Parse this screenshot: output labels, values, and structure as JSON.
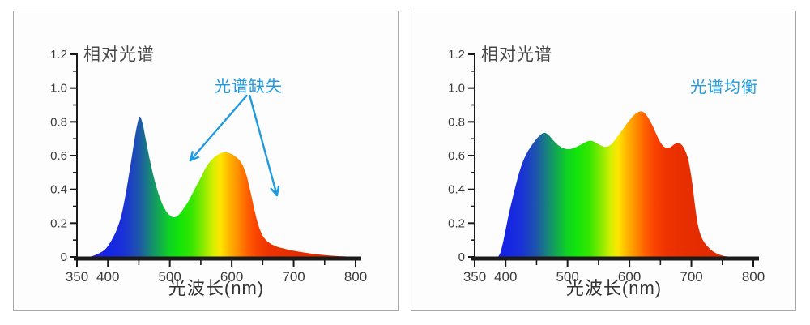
{
  "page": {
    "background": "#ffffff",
    "panel_background": "#fdfdfd",
    "panel_border_color": "#a8a8a8",
    "axis_color": "#1a1a1a",
    "annotation_color": "#1f9ade",
    "title_color": "#474747"
  },
  "chart_data": [
    {
      "type": "area",
      "panel": "left",
      "title": "相对光谱",
      "xlabel": "光波长(nm)",
      "xlim": [
        350,
        800
      ],
      "ylim": [
        0,
        1.2
      ],
      "x_major_ticks": [
        350,
        400,
        500,
        600,
        700,
        800
      ],
      "x_tick_labels": [
        "350",
        "400",
        "500",
        "600",
        "700",
        "800"
      ],
      "x_minor_ticks": [
        450,
        550,
        650,
        750
      ],
      "y_major_ticks": [
        0,
        0.2,
        0.4,
        0.6,
        0.8,
        1.0,
        1.2
      ],
      "y_tick_labels": [
        "0",
        "0.2",
        "0.4",
        "0.6",
        "0.8",
        "1.0",
        "1.2"
      ],
      "y_minor_ticks": [
        0.1,
        0.3,
        0.5,
        0.7,
        0.9,
        1.1
      ],
      "grid": false,
      "annotation": {
        "text": "光谱缺失",
        "color": "#1f9ade",
        "x_nm": 625,
        "y_val": 1.04,
        "arrows": [
          {
            "from": [
              624,
              0.955
            ],
            "to": [
              533,
              0.571
            ]
          },
          {
            "from": [
              629,
              0.955
            ],
            "to": [
              673,
              0.365
            ]
          }
        ]
      },
      "series": [
        {
          "name": "相对光谱",
          "points": [
            [
              368,
              0
            ],
            [
              375,
              0.005
            ],
            [
              382,
              0.015
            ],
            [
              390,
              0.03
            ],
            [
              398,
              0.055
            ],
            [
              406,
              0.1
            ],
            [
              414,
              0.16
            ],
            [
              422,
              0.25
            ],
            [
              430,
              0.4
            ],
            [
              438,
              0.58
            ],
            [
              444,
              0.72
            ],
            [
              449,
              0.81
            ],
            [
              452,
              0.83
            ],
            [
              456,
              0.79
            ],
            [
              461,
              0.7
            ],
            [
              468,
              0.57
            ],
            [
              475,
              0.46
            ],
            [
              483,
              0.36
            ],
            [
              491,
              0.29
            ],
            [
              499,
              0.25
            ],
            [
              506,
              0.235
            ],
            [
              513,
              0.245
            ],
            [
              521,
              0.28
            ],
            [
              530,
              0.33
            ],
            [
              540,
              0.4
            ],
            [
              550,
              0.47
            ],
            [
              560,
              0.54
            ],
            [
              570,
              0.585
            ],
            [
              580,
              0.61
            ],
            [
              588,
              0.62
            ],
            [
              596,
              0.615
            ],
            [
              604,
              0.6
            ],
            [
              612,
              0.575
            ],
            [
              618,
              0.54
            ],
            [
              624,
              0.48
            ],
            [
              630,
              0.39
            ],
            [
              636,
              0.29
            ],
            [
              642,
              0.2
            ],
            [
              648,
              0.14
            ],
            [
              654,
              0.105
            ],
            [
              662,
              0.08
            ],
            [
              672,
              0.062
            ],
            [
              684,
              0.05
            ],
            [
              698,
              0.038
            ],
            [
              714,
              0.028
            ],
            [
              732,
              0.018
            ],
            [
              752,
              0.01
            ],
            [
              772,
              0.005
            ],
            [
              790,
              0.002
            ],
            [
              800,
              0.001
            ]
          ]
        }
      ],
      "gradient_stops": [
        {
          "nm": 370,
          "color": "#2a1fc8"
        },
        {
          "nm": 400,
          "color": "#1523e6"
        },
        {
          "nm": 425,
          "color": "#1a31d8"
        },
        {
          "nm": 450,
          "color": "#1d55ab"
        },
        {
          "nm": 465,
          "color": "#187f80"
        },
        {
          "nm": 480,
          "color": "#12a457"
        },
        {
          "nm": 500,
          "color": "#0fd321"
        },
        {
          "nm": 515,
          "color": "#12e40a"
        },
        {
          "nm": 535,
          "color": "#35e600"
        },
        {
          "nm": 555,
          "color": "#8ceb00"
        },
        {
          "nm": 570,
          "color": "#d5ef00"
        },
        {
          "nm": 582,
          "color": "#ffe400"
        },
        {
          "nm": 596,
          "color": "#ffb400"
        },
        {
          "nm": 610,
          "color": "#ff8e00"
        },
        {
          "nm": 625,
          "color": "#ff6000"
        },
        {
          "nm": 640,
          "color": "#f94400"
        },
        {
          "nm": 660,
          "color": "#ee3300"
        },
        {
          "nm": 700,
          "color": "#e52d00"
        },
        {
          "nm": 760,
          "color": "#dd2900"
        }
      ]
    },
    {
      "type": "area",
      "panel": "right",
      "title": "相对光谱",
      "xlabel": "光波长(nm)",
      "xlim": [
        350,
        800
      ],
      "ylim": [
        0,
        1.2
      ],
      "x_major_ticks": [
        350,
        400,
        500,
        600,
        700,
        800
      ],
      "x_tick_labels": [
        "350",
        "400",
        "500",
        "600",
        "700",
        "800"
      ],
      "x_minor_ticks": [
        450,
        550,
        650,
        750
      ],
      "y_major_ticks": [
        0,
        0.2,
        0.4,
        0.6,
        0.8,
        1.0,
        1.2
      ],
      "y_tick_labels": [
        "0",
        "0.2",
        "0.4",
        "0.6",
        "0.8",
        "1.0",
        "1.2"
      ],
      "y_minor_ticks": [
        0.1,
        0.3,
        0.5,
        0.7,
        0.9,
        1.1
      ],
      "grid": false,
      "annotation": {
        "text": "光谱均衡",
        "color": "#1f9ade",
        "x_nm": 750,
        "y_val": 1.03,
        "arrows": []
      },
      "series": [
        {
          "name": "相对光谱",
          "points": [
            [
              388,
              0
            ],
            [
              392,
              0.03
            ],
            [
              396,
              0.09
            ],
            [
              400,
              0.16
            ],
            [
              405,
              0.25
            ],
            [
              410,
              0.33
            ],
            [
              416,
              0.42
            ],
            [
              422,
              0.5
            ],
            [
              428,
              0.565
            ],
            [
              435,
              0.62
            ],
            [
              442,
              0.66
            ],
            [
              450,
              0.7
            ],
            [
              457,
              0.725
            ],
            [
              463,
              0.735
            ],
            [
              470,
              0.72
            ],
            [
              477,
              0.69
            ],
            [
              484,
              0.665
            ],
            [
              491,
              0.648
            ],
            [
              498,
              0.64
            ],
            [
              505,
              0.64
            ],
            [
              512,
              0.648
            ],
            [
              520,
              0.662
            ],
            [
              528,
              0.678
            ],
            [
              535,
              0.688
            ],
            [
              541,
              0.685
            ],
            [
              548,
              0.672
            ],
            [
              555,
              0.658
            ],
            [
              561,
              0.652
            ],
            [
              568,
              0.66
            ],
            [
              575,
              0.685
            ],
            [
              582,
              0.72
            ],
            [
              590,
              0.76
            ],
            [
              598,
              0.8
            ],
            [
              606,
              0.835
            ],
            [
              613,
              0.855
            ],
            [
              619,
              0.862
            ],
            [
              625,
              0.85
            ],
            [
              631,
              0.82
            ],
            [
              637,
              0.78
            ],
            [
              643,
              0.73
            ],
            [
              649,
              0.685
            ],
            [
              655,
              0.655
            ],
            [
              661,
              0.645
            ],
            [
              667,
              0.652
            ],
            [
              673,
              0.668
            ],
            [
              679,
              0.675
            ],
            [
              684,
              0.665
            ],
            [
              689,
              0.638
            ],
            [
              694,
              0.59
            ],
            [
              698,
              0.52
            ],
            [
              702,
              0.42
            ],
            [
              706,
              0.3
            ],
            [
              710,
              0.2
            ],
            [
              715,
              0.13
            ],
            [
              721,
              0.085
            ],
            [
              728,
              0.055
            ],
            [
              736,
              0.03
            ],
            [
              744,
              0.015
            ],
            [
              752,
              0.006
            ],
            [
              760,
              0.002
            ]
          ]
        }
      ],
      "gradient_stops": [
        {
          "nm": 370,
          "color": "#2a1fc8"
        },
        {
          "nm": 400,
          "color": "#1523e6"
        },
        {
          "nm": 425,
          "color": "#1a31d8"
        },
        {
          "nm": 450,
          "color": "#1d55ab"
        },
        {
          "nm": 465,
          "color": "#187f80"
        },
        {
          "nm": 480,
          "color": "#12a457"
        },
        {
          "nm": 500,
          "color": "#0fd321"
        },
        {
          "nm": 515,
          "color": "#12e40a"
        },
        {
          "nm": 535,
          "color": "#35e600"
        },
        {
          "nm": 555,
          "color": "#8ceb00"
        },
        {
          "nm": 570,
          "color": "#d5ef00"
        },
        {
          "nm": 582,
          "color": "#ffe400"
        },
        {
          "nm": 596,
          "color": "#ffb400"
        },
        {
          "nm": 610,
          "color": "#ff8e00"
        },
        {
          "nm": 625,
          "color": "#ff6000"
        },
        {
          "nm": 640,
          "color": "#f94400"
        },
        {
          "nm": 660,
          "color": "#ee3300"
        },
        {
          "nm": 700,
          "color": "#e52d00"
        },
        {
          "nm": 760,
          "color": "#dd2900"
        }
      ]
    }
  ]
}
